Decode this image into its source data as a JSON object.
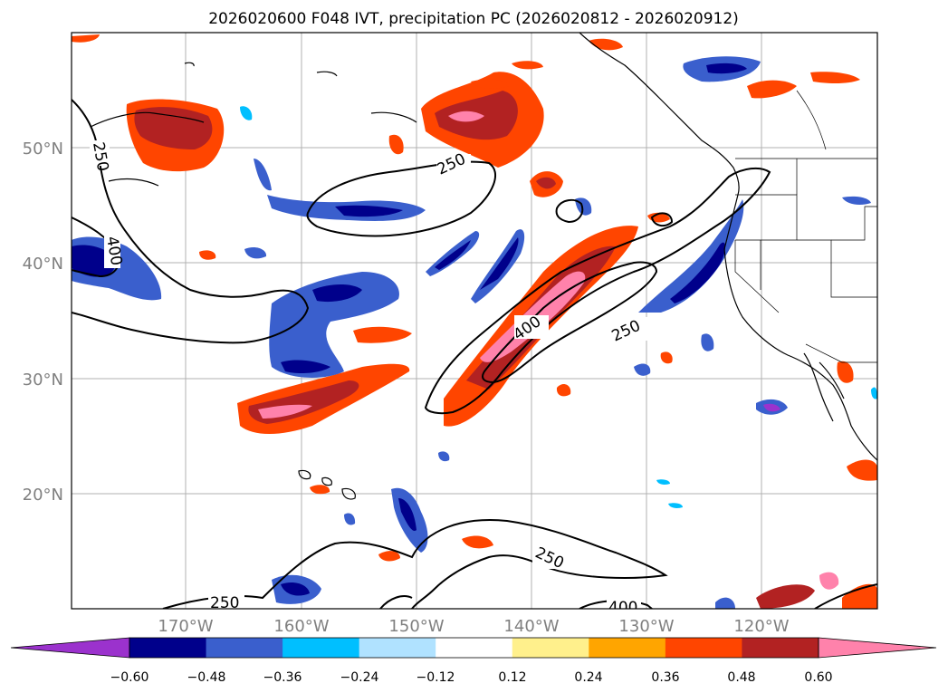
{
  "title": "2026020600 F048 IVT, precipitation PC (2026020812 - 2026020912)",
  "map": {
    "lon_labels": [
      "170°W",
      "160°W",
      "150°W",
      "140°W",
      "130°W",
      "120°W"
    ],
    "lat_labels": [
      "50°N",
      "40°N",
      "30°N",
      "20°N"
    ],
    "contour_labels": [
      "250",
      "400",
      "250",
      "400",
      "250",
      "250",
      "250",
      "400"
    ]
  },
  "colorbar": {
    "colors": [
      "#9b32cd",
      "#00008b",
      "#3a5fcd",
      "#00bfff",
      "#b0e2ff",
      "#ffffff",
      "#fff08c",
      "#ffa500",
      "#ff4500",
      "#b22222",
      "#ff82ab"
    ],
    "tick_labels": [
      "−0.60",
      "−0.48",
      "−0.36",
      "−0.24",
      "−0.12",
      "0.12",
      "0.24",
      "0.36",
      "0.48",
      "0.60"
    ]
  }
}
